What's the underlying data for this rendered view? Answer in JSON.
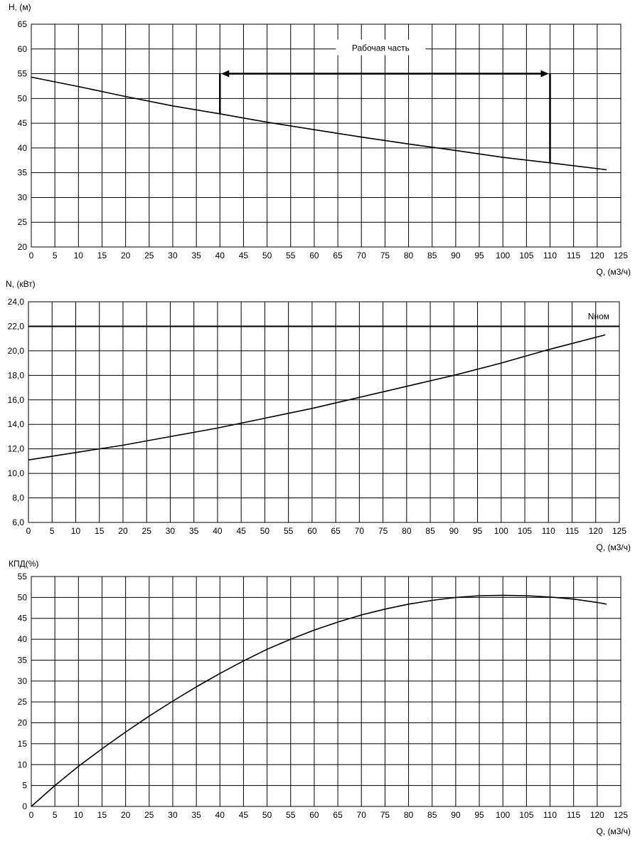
{
  "chart_data": [
    {
      "type": "line",
      "ylabel": "H, (м)",
      "xlabel": "Q, (м3/ч)",
      "xlim": [
        0,
        125
      ],
      "ylim": [
        20,
        65
      ],
      "x_ticks": [
        "0",
        "5",
        "10",
        "15",
        "20",
        "25",
        "30",
        "35",
        "40",
        "45",
        "50",
        "55",
        "60",
        "65",
        "70",
        "75",
        "80",
        "85",
        "90",
        "95",
        "100",
        "105",
        "110",
        "115",
        "120",
        "125"
      ],
      "y_ticks": [
        "20",
        "25",
        "30",
        "35",
        "40",
        "45",
        "50",
        "55",
        "60",
        "65"
      ],
      "grid": true,
      "series": [
        {
          "x": [
            0,
            10,
            20,
            30,
            40,
            50,
            60,
            70,
            80,
            90,
            100,
            110,
            122
          ],
          "y": [
            54.3,
            52.4,
            50.4,
            48.5,
            46.9,
            45.2,
            43.7,
            42.2,
            40.8,
            39.5,
            38.1,
            37.0,
            35.6
          ]
        }
      ],
      "annotation": {
        "text": "Рабочая часть",
        "range": [
          40,
          110
        ],
        "arrow_y": 55,
        "left_bottom_y": 46.9,
        "right_bottom_y": 37.0
      }
    },
    {
      "type": "line",
      "ylabel": "N, (кВт)",
      "xlabel": "Q, (м3/ч)",
      "xlim": [
        0,
        125
      ],
      "ylim": [
        6,
        24
      ],
      "x_ticks": [
        "0",
        "5",
        "10",
        "15",
        "20",
        "25",
        "30",
        "35",
        "40",
        "45",
        "50",
        "55",
        "60",
        "65",
        "70",
        "75",
        "80",
        "85",
        "90",
        "95",
        "100",
        "105",
        "110",
        "115",
        "120",
        "125"
      ],
      "y_ticks": [
        "6,0",
        "8,0",
        "10,0",
        "12,0",
        "14,0",
        "16,0",
        "18,0",
        "20,0",
        "22,0",
        "24,0"
      ],
      "grid": true,
      "series": [
        {
          "x": [
            0,
            10,
            20,
            30,
            40,
            50,
            60,
            70,
            80,
            90,
            100,
            110,
            122
          ],
          "y": [
            11.1,
            11.7,
            12.3,
            13.0,
            13.7,
            14.5,
            15.3,
            16.2,
            17.1,
            18.0,
            19.0,
            20.1,
            21.3
          ]
        }
      ],
      "reference_line": {
        "label": "Nном",
        "y": 22.0
      }
    },
    {
      "type": "line",
      "ylabel": "КПД(%)",
      "xlabel": "Q, (м3/ч)",
      "xlim": [
        0,
        125
      ],
      "ylim": [
        0,
        55
      ],
      "x_ticks": [
        "0",
        "5",
        "10",
        "15",
        "20",
        "25",
        "30",
        "35",
        "40",
        "45",
        "50",
        "55",
        "60",
        "65",
        "70",
        "75",
        "80",
        "85",
        "90",
        "95",
        "100",
        "105",
        "110",
        "115",
        "120",
        "125"
      ],
      "y_ticks": [
        "0",
        "5",
        "10",
        "15",
        "20",
        "25",
        "30",
        "35",
        "40",
        "45",
        "50",
        "55"
      ],
      "grid": true,
      "series": [
        {
          "x": [
            0,
            5,
            10,
            15,
            20,
            25,
            30,
            35,
            40,
            45,
            50,
            55,
            60,
            65,
            70,
            75,
            80,
            85,
            90,
            95,
            100,
            105,
            110,
            115,
            120,
            122
          ],
          "y": [
            0,
            5.0,
            9.6,
            13.8,
            17.8,
            21.6,
            25.2,
            28.6,
            31.8,
            34.8,
            37.6,
            40.0,
            42.2,
            44.1,
            45.8,
            47.2,
            48.4,
            49.3,
            50.0,
            50.4,
            50.5,
            50.4,
            50.1,
            49.6,
            48.8,
            48.4
          ]
        }
      ]
    }
  ]
}
